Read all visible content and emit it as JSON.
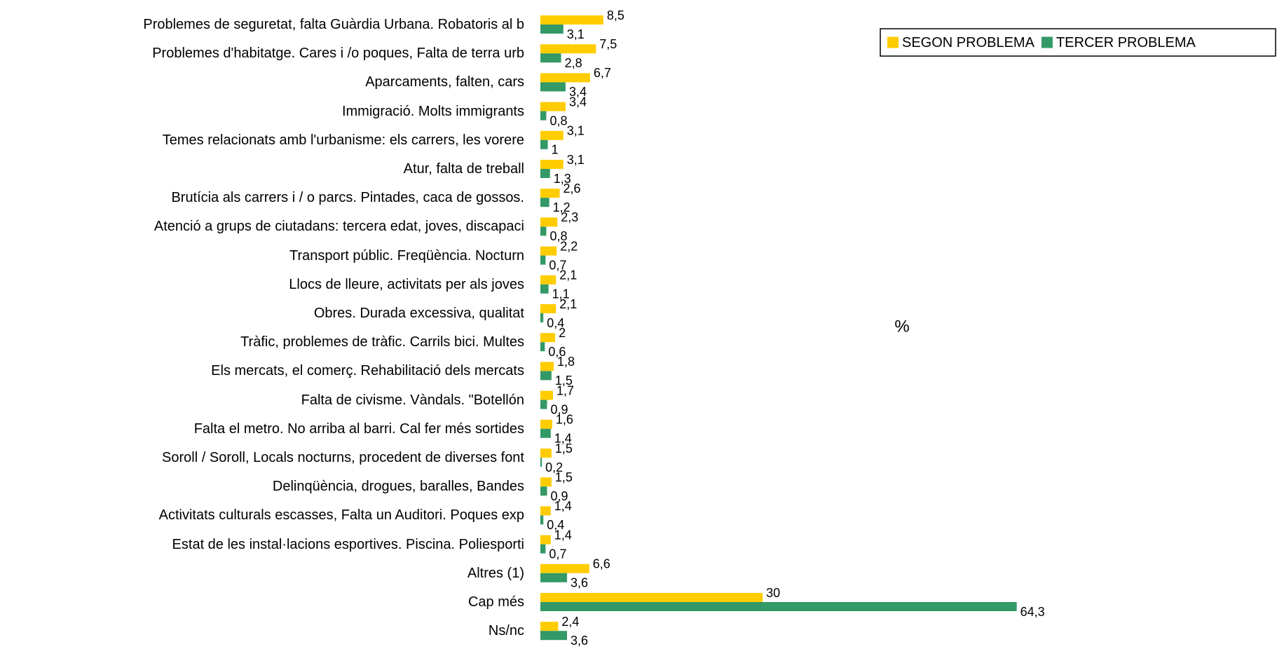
{
  "chart_data": {
    "type": "bar",
    "orientation": "horizontal",
    "axis_label": "%",
    "categories": [
      "Problemes de seguretat, falta Guàrdia Urbana. Robatoris al b",
      "Problemes d'habitatge. Cares i /o poques, Falta de terra urb",
      "Aparcaments, falten, cars",
      "Immigració. Molts immigrants",
      "Temes relacionats amb l'urbanisme: els carrers, les vorere",
      "Atur, falta de treball",
      "Brutícia als carrers i / o parcs. Pintades, caca de gossos.",
      "Atenció a grups de ciutadans: tercera edat, joves, discapaci",
      "Transport públic. Freqüència. Nocturn",
      "Llocs de lleure, activitats per als joves",
      "Obres. Durada excessiva, qualitat",
      "Tràfic, problemes de tràfic. Carrils bici. Multes",
      "Els mercats, el comerç. Rehabilitació dels mercats",
      "Falta de civisme. Vàndals. \"Botellón",
      "Falta el metro. No arriba al barri. Cal fer més sortides",
      "Soroll / Soroll, Locals nocturns, procedent de diverses font",
      "Delinqüència, drogues, baralles, Bandes",
      "Activitats culturals escasses, Falta un Auditori. Poques exp",
      "Estat de les instal·lacions esportives. Piscina. Poliesporti",
      "Altres (1)",
      "Cap més",
      "Ns/nc"
    ],
    "series": [
      {
        "name": "SEGON PROBLEMA",
        "color": "#FFCC00",
        "values": [
          8.5,
          7.5,
          6.7,
          3.4,
          3.1,
          3.1,
          2.6,
          2.3,
          2.2,
          2.1,
          2.1,
          2,
          1.8,
          1.7,
          1.6,
          1.5,
          1.5,
          1.4,
          1.4,
          6.6,
          30,
          2.4
        ],
        "value_labels": [
          "8,5",
          "7,5",
          "6,7",
          "3,4",
          "3,1",
          "3,1",
          "2,6",
          "2,3",
          "2,2",
          "2,1",
          "2,1",
          "2",
          "1,8",
          "1,7",
          "1,6",
          "1,5",
          "1,5",
          "1,4",
          "1,4",
          "6,6",
          "30",
          "2,4"
        ]
      },
      {
        "name": "TERCER PROBLEMA",
        "color": "#339966",
        "values": [
          3.1,
          2.8,
          3.4,
          0.8,
          1,
          1.3,
          1.2,
          0.8,
          0.7,
          1.1,
          0.4,
          0.6,
          1.5,
          0.9,
          1.4,
          0.2,
          0.9,
          0.4,
          0.7,
          3.6,
          64.3,
          3.6
        ],
        "value_labels": [
          "3,1",
          "2,8",
          "3,4",
          "0,8",
          "1",
          "1,3",
          "1,2",
          "0,8",
          "0,7",
          "1,1",
          "0,4",
          "0,6",
          "1,5",
          "0,9",
          "1,4",
          "0,2",
          "0,9",
          "0,4",
          "0,7",
          "3,6",
          "64,3",
          "3,6"
        ]
      }
    ],
    "legend": "top-right"
  }
}
